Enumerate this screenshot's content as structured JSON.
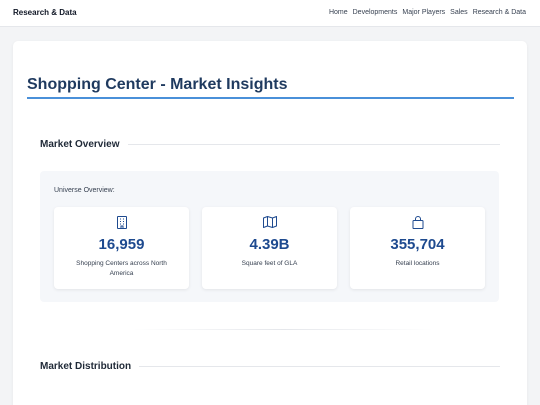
{
  "nav": {
    "brand": "Research & Data",
    "links": [
      "Home",
      "Developments",
      "Major Players",
      "Sales",
      "Research & Data"
    ]
  },
  "page": {
    "title": "Shopping Center - Market Insights"
  },
  "sections": {
    "overview_title": "Market Overview",
    "distribution_title": "Market Distribution"
  },
  "overview": {
    "label": "Universe Overview:",
    "stats": [
      {
        "icon": "building-icon",
        "value": "16,959",
        "desc": "Shopping Centers across North America"
      },
      {
        "icon": "map-icon",
        "value": "4.39B",
        "desc": "Square feet of GLA"
      },
      {
        "icon": "shopping-bag-icon",
        "value": "355,704",
        "desc": "Retail locations"
      }
    ]
  },
  "colors": {
    "accent": "#4a90d9",
    "title": "#1f3a5f",
    "stat_value": "#1e4a8f",
    "panel_bg": "#f5f7fa"
  }
}
